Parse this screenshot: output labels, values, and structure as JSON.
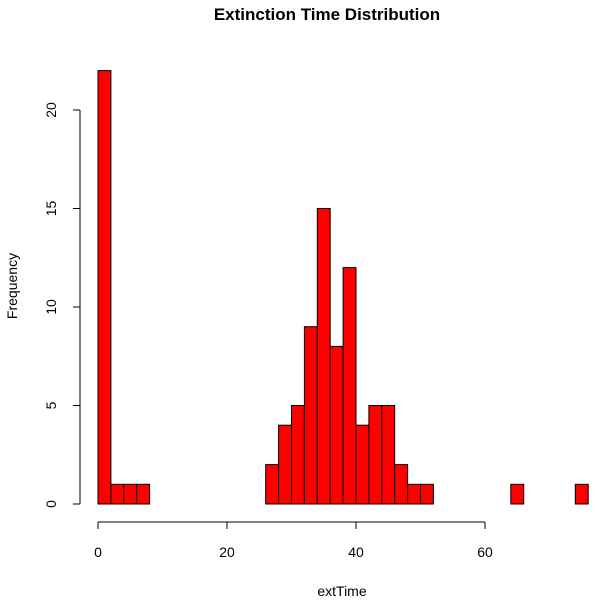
{
  "chart_data": {
    "type": "bar",
    "title": "Extinction Time Distribution",
    "xlabel": "extTime",
    "ylabel": "Frequency",
    "bar_color": "#ff0000",
    "bar_border_color": "#000000",
    "bin_width": 2,
    "bins": [
      {
        "start": 0,
        "end": 2,
        "count": 22
      },
      {
        "start": 2,
        "end": 4,
        "count": 1
      },
      {
        "start": 4,
        "end": 6,
        "count": 1
      },
      {
        "start": 6,
        "end": 8,
        "count": 1
      },
      {
        "start": 8,
        "end": 10,
        "count": 0
      },
      {
        "start": 10,
        "end": 12,
        "count": 0
      },
      {
        "start": 12,
        "end": 14,
        "count": 0
      },
      {
        "start": 14,
        "end": 16,
        "count": 0
      },
      {
        "start": 16,
        "end": 18,
        "count": 0
      },
      {
        "start": 18,
        "end": 20,
        "count": 0
      },
      {
        "start": 20,
        "end": 22,
        "count": 0
      },
      {
        "start": 22,
        "end": 24,
        "count": 0
      },
      {
        "start": 24,
        "end": 26,
        "count": 0
      },
      {
        "start": 26,
        "end": 28,
        "count": 2
      },
      {
        "start": 28,
        "end": 30,
        "count": 4
      },
      {
        "start": 30,
        "end": 32,
        "count": 5
      },
      {
        "start": 32,
        "end": 34,
        "count": 9
      },
      {
        "start": 34,
        "end": 36,
        "count": 15
      },
      {
        "start": 36,
        "end": 38,
        "count": 8
      },
      {
        "start": 38,
        "end": 40,
        "count": 12
      },
      {
        "start": 40,
        "end": 42,
        "count": 4
      },
      {
        "start": 42,
        "end": 44,
        "count": 5
      },
      {
        "start": 44,
        "end": 46,
        "count": 5
      },
      {
        "start": 46,
        "end": 48,
        "count": 2
      },
      {
        "start": 48,
        "end": 50,
        "count": 1
      },
      {
        "start": 50,
        "end": 52,
        "count": 1
      },
      {
        "start": 52,
        "end": 54,
        "count": 0
      },
      {
        "start": 54,
        "end": 56,
        "count": 0
      },
      {
        "start": 56,
        "end": 58,
        "count": 0
      },
      {
        "start": 58,
        "end": 60,
        "count": 0
      },
      {
        "start": 60,
        "end": 62,
        "count": 0
      },
      {
        "start": 62,
        "end": 64,
        "count": 0
      },
      {
        "start": 64,
        "end": 66,
        "count": 1
      },
      {
        "start": 66,
        "end": 68,
        "count": 0
      },
      {
        "start": 68,
        "end": 70,
        "count": 0
      },
      {
        "start": 70,
        "end": 72,
        "count": 0
      },
      {
        "start": 72,
        "end": 74,
        "count": 0
      },
      {
        "start": 74,
        "end": 76,
        "count": 1
      }
    ],
    "xlim": [
      0,
      76
    ],
    "ylim": [
      0,
      22
    ],
    "x_ticks": [
      0,
      20,
      40,
      60
    ],
    "y_ticks": [
      0,
      5,
      10,
      15,
      20
    ],
    "grid": false,
    "legend": "none"
  }
}
